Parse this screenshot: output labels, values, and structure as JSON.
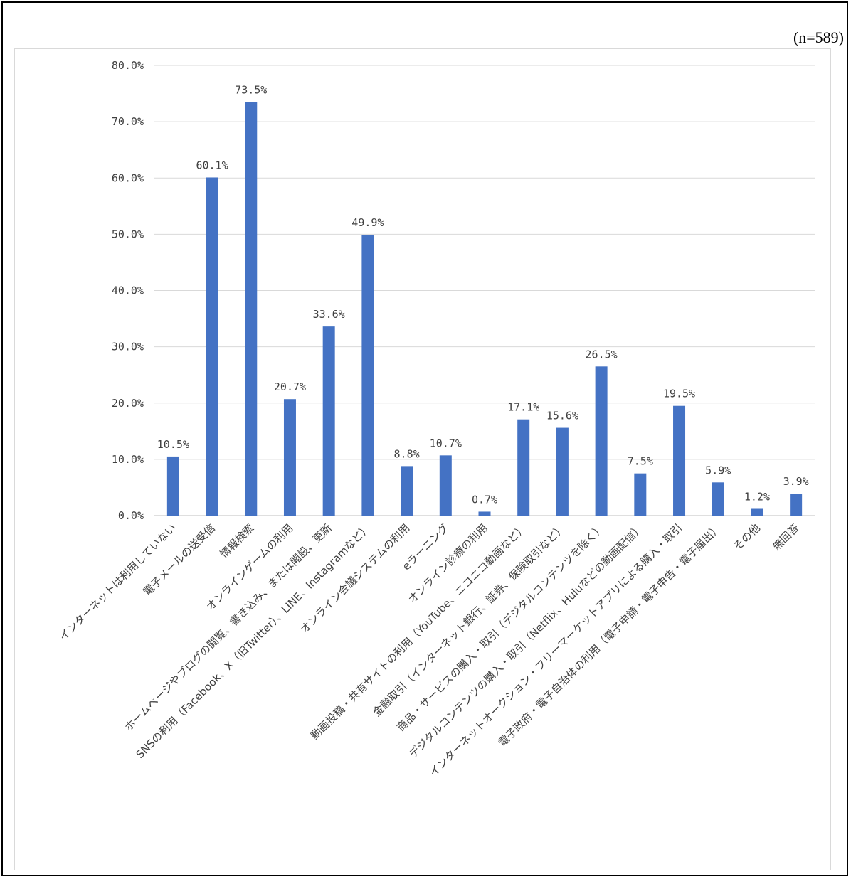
{
  "sample_note": "(n=589)",
  "colors": {
    "bar": "#4472c4",
    "grid": "#d9d9d9",
    "axis": "#bfbfbf",
    "text": "#404040"
  },
  "chart_data": {
    "type": "bar",
    "title": "",
    "xlabel": "",
    "ylabel": "",
    "ylim": [
      0,
      80
    ],
    "yticks": [
      "0.0%",
      "10.0%",
      "20.0%",
      "30.0%",
      "40.0%",
      "50.0%",
      "60.0%",
      "70.0%",
      "80.0%"
    ],
    "grid": true,
    "categories": [
      "インターネットは利用していない",
      "電子メールの送受信",
      "情報検索",
      "オンラインゲームの利用",
      "ホームページやブログの閲覧、書き込み、または開設、更新",
      "SNSの利用（Facebook、X（旧Twitter）、LINE、Instagramなど）",
      "オンライン会議システムの利用",
      "eラーニング",
      "オンライン診療の利用",
      "動画投稿・共有サイトの利用（YouTube、ニコニコ動画など）",
      "金融取引（インターネット銀行、証券、保険取引など）",
      "商品・サービスの購入・取引（デジタルコンテンツを除く）",
      "デジタルコンテンツの購入・取引（Netflix、Huluなどの動画配信）",
      "インターネットオークション・フリーマーケットアプリによる購入・取引",
      "電子政府・電子自治体の利用（電子申請・電子申告・電子届出）",
      "その他",
      "無回答"
    ],
    "values": [
      10.5,
      60.1,
      73.5,
      20.7,
      33.6,
      49.9,
      8.8,
      10.7,
      0.7,
      17.1,
      15.6,
      26.5,
      7.5,
      19.5,
      5.9,
      1.2,
      3.9
    ],
    "labels": [
      "10.5%",
      "60.1%",
      "73.5%",
      "20.7%",
      "33.6%",
      "49.9%",
      "8.8%",
      "10.7%",
      "0.7%",
      "17.1%",
      "15.6%",
      "26.5%",
      "7.5%",
      "19.5%",
      "5.9%",
      "1.2%",
      "3.9%"
    ]
  }
}
